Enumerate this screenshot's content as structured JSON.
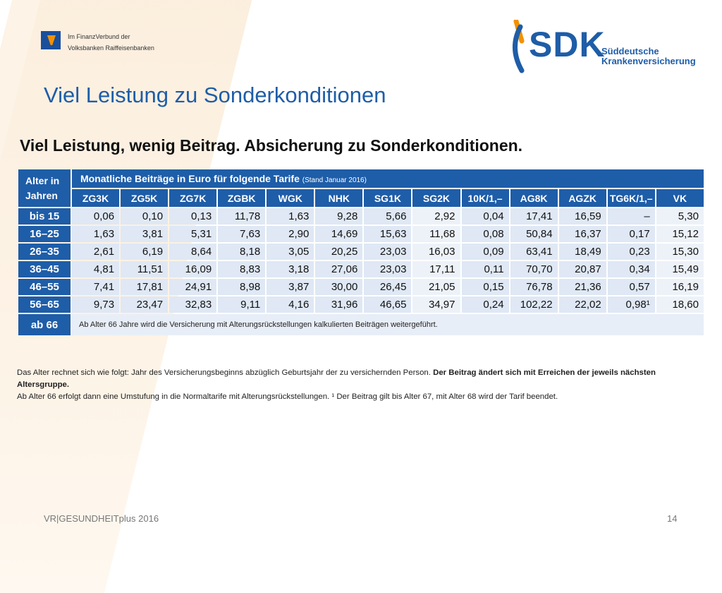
{
  "vr_logo": {
    "line1": "Im FinanzVerbund der",
    "line2": "Volksbanken Raiffeisenbanken"
  },
  "sdk_logo": {
    "word": "SDK",
    "sub1": "Süddeutsche",
    "sub2": "Krankenversicherung"
  },
  "slide_title": "Viel Leistung zu Sonderkonditionen",
  "headline": "Viel Leistung, wenig Beitrag. Absicherung zu Sonderkonditionen.",
  "table": {
    "age_header": "Alter in Jahren",
    "title": "Monatliche Beiträge in Euro für folgende Tarife",
    "title_note": "(Stand Januar 2016)",
    "columns": [
      "ZG3K",
      "ZG5K",
      "ZG7K",
      "ZGBK",
      "WGK",
      "NHK",
      "SG1K",
      "SG2K",
      "10K/1,–",
      "AG8K",
      "AGZK",
      "TG6K/1,–",
      "VK"
    ],
    "rows": [
      {
        "age": "bis 15",
        "values": [
          "0,06",
          "0,10",
          "0,13",
          "11,78",
          "1,63",
          "9,28",
          "5,66",
          "2,92",
          "0,04",
          "17,41",
          "16,59",
          "–",
          "5,30"
        ]
      },
      {
        "age": "16–25",
        "values": [
          "1,63",
          "3,81",
          "5,31",
          "7,63",
          "2,90",
          "14,69",
          "15,63",
          "11,68",
          "0,08",
          "50,84",
          "16,37",
          "0,17",
          "15,12"
        ]
      },
      {
        "age": "26–35",
        "values": [
          "2,61",
          "6,19",
          "8,64",
          "8,18",
          "3,05",
          "20,25",
          "23,03",
          "16,03",
          "0,09",
          "63,41",
          "18,49",
          "0,23",
          "15,30"
        ]
      },
      {
        "age": "36–45",
        "values": [
          "4,81",
          "11,51",
          "16,09",
          "8,83",
          "3,18",
          "27,06",
          "23,03",
          "17,11",
          "0,11",
          "70,70",
          "20,87",
          "0,34",
          "15,49"
        ]
      },
      {
        "age": "46–55",
        "values": [
          "7,41",
          "17,81",
          "24,91",
          "8,98",
          "3,87",
          "30,00",
          "26,45",
          "21,05",
          "0,15",
          "76,78",
          "21,36",
          "0,57",
          "16,19"
        ]
      },
      {
        "age": "56–65",
        "values": [
          "9,73",
          "23,47",
          "32,83",
          "9,11",
          "4,16",
          "31,96",
          "46,65",
          "34,97",
          "0,24",
          "102,22",
          "22,02",
          "0,98¹",
          "18,60"
        ]
      }
    ],
    "last_row": {
      "age": "ab 66",
      "note": "Ab Alter 66 Jahre wird die Versicherung mit Alterungsrückstellungen kalkulierten Beiträgen weitergeführt."
    }
  },
  "footnote": {
    "part1": "Das Alter rechnet sich wie folgt: Jahr des Versicherungsbeginns abzüglich Geburtsjahr der zu versichernden Person. ",
    "bold": "Der Beitrag ändert sich mit Erreichen der jeweils nächsten Altersgruppe.",
    "part2": "Ab Alter 66 erfolgt dann eine Umstufung in die Normaltarife mit Alterungsrückstellungen. ¹ Der Beitrag gilt bis Alter 67, mit Alter 68 wird der Tarif beendet."
  },
  "footer": {
    "left": "VR|GESUNDHEITplus 2016",
    "page": "14"
  },
  "colors": {
    "brand_blue": "#1e5da8",
    "accent_orange": "#f39200",
    "cell_bg": "#dfe8f4"
  }
}
